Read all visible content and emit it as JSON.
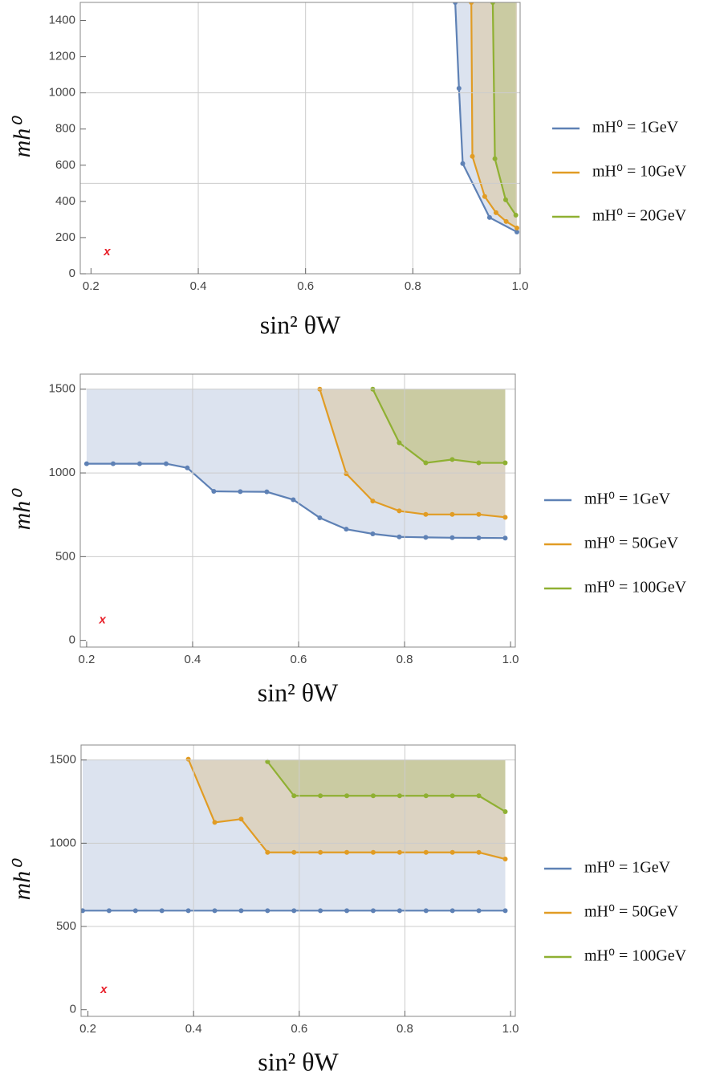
{
  "chart_data": [
    {
      "type": "line",
      "xlabel": "sin² θW",
      "ylabel": "mh⁰",
      "xlim": [
        0.18,
        1.0
      ],
      "ylim": [
        0,
        1500
      ],
      "xticks": [
        0.2,
        0.4,
        0.6,
        0.8,
        {
          "value": 1.0,
          "label": "1.0"
        }
      ],
      "yticks": [
        0,
        200,
        400,
        600,
        800,
        1000,
        1200,
        1400
      ],
      "xgrid": [
        0.4,
        0.6,
        0.8
      ],
      "ygrid": [
        500,
        1000
      ],
      "series": [
        {
          "name": "mH⁰ = 1GeV",
          "color": "#5e81b5",
          "x": [
            0.879,
            0.886,
            0.893,
            0.943,
            0.994
          ],
          "values": [
            1500,
            1025,
            609,
            311,
            231
          ]
        },
        {
          "name": "mH⁰ = 10GeV",
          "color": "#e19c24",
          "x": [
            0.909,
            0.911,
            0.934,
            0.955,
            0.974,
            0.994
          ],
          "values": [
            1500,
            649,
            427,
            338,
            289,
            253
          ]
        },
        {
          "name": "mH⁰ = 20GeV",
          "color": "#8fb032",
          "x": [
            0.949,
            0.953,
            0.973,
            0.992
          ],
          "values": [
            1500,
            636,
            409,
            324
          ]
        }
      ],
      "annotations": [
        {
          "text": "x",
          "x": 0.23,
          "y": 120,
          "color": "#e8202a"
        }
      ]
    },
    {
      "type": "line",
      "xlabel": "sin² θW",
      "ylabel": "mh⁰",
      "xlim": [
        0.188,
        1.009
      ],
      "ylim": [
        -40,
        1590
      ],
      "xticks": [
        0.2,
        0.4,
        0.6,
        0.8,
        {
          "value": 1.0,
          "label": "1.0"
        }
      ],
      "yticks": [
        0,
        500,
        1000,
        1500
      ],
      "xgrid": [
        0.4,
        0.6,
        0.8
      ],
      "ygrid": [
        500,
        1000,
        1500
      ],
      "series": [
        {
          "name": "mH⁰ = 1GeV",
          "color": "#5e81b5",
          "x": [
            0.2,
            0.25,
            0.3,
            0.35,
            0.39,
            0.44,
            0.49,
            0.54,
            0.59,
            0.64,
            0.69,
            0.74,
            0.79,
            0.84,
            0.89,
            0.94,
            0.99
          ],
          "values": [
            1055,
            1055,
            1055,
            1055,
            1030,
            890,
            888,
            887,
            840,
            732,
            664,
            636,
            618,
            615,
            613,
            612,
            611
          ]
        },
        {
          "name": "mH⁰ = 50GeV",
          "color": "#e19c24",
          "x": [
            0.64,
            0.69,
            0.74,
            0.79,
            0.84,
            0.89,
            0.94,
            0.99
          ],
          "values": [
            1500,
            995,
            832,
            773,
            752,
            752,
            752,
            735
          ]
        },
        {
          "name": "mH⁰ = 100GeV",
          "color": "#8fb032",
          "x": [
            0.74,
            0.79,
            0.84,
            0.89,
            0.94,
            0.99
          ],
          "values": [
            1500,
            1180,
            1060,
            1080,
            1060,
            1060
          ]
        }
      ],
      "annotations": [
        {
          "text": "x",
          "x": 0.23,
          "y": 120,
          "color": "#e8202a"
        }
      ]
    },
    {
      "type": "line",
      "xlabel": "sin² θW",
      "ylabel": "mh⁰",
      "xlim": [
        0.187,
        1.009
      ],
      "ylim": [
        -40,
        1590
      ],
      "xticks": [
        0.2,
        0.4,
        0.6,
        0.8,
        {
          "value": 1.0,
          "label": "1.0"
        }
      ],
      "yticks": [
        0,
        500,
        1000,
        1500
      ],
      "xgrid": [
        0.4,
        0.6,
        0.8
      ],
      "ygrid": [
        500,
        1000,
        1500
      ],
      "series": [
        {
          "name": "mH⁰ = 1GeV",
          "color": "#5e81b5",
          "x": [
            0.19,
            0.24,
            0.29,
            0.34,
            0.39,
            0.44,
            0.49,
            0.54,
            0.59,
            0.64,
            0.69,
            0.74,
            0.79,
            0.84,
            0.89,
            0.94,
            0.99
          ],
          "values": [
            595,
            595,
            595,
            595,
            595,
            595,
            595,
            595,
            595,
            595,
            595,
            595,
            595,
            595,
            595,
            595,
            595
          ]
        },
        {
          "name": "mH⁰ = 50GeV",
          "color": "#e19c24",
          "x": [
            0.39,
            0.44,
            0.49,
            0.54,
            0.59,
            0.64,
            0.69,
            0.74,
            0.79,
            0.84,
            0.89,
            0.94,
            0.99
          ],
          "values": [
            1505,
            1125,
            1145,
            945,
            945,
            945,
            945,
            945,
            945,
            945,
            945,
            945,
            905
          ]
        },
        {
          "name": "mH⁰ = 100GeV",
          "color": "#8fb032",
          "x": [
            0.54,
            0.59,
            0.64,
            0.69,
            0.74,
            0.79,
            0.84,
            0.89,
            0.94,
            0.99
          ],
          "values": [
            1490,
            1285,
            1285,
            1285,
            1285,
            1285,
            1285,
            1285,
            1285,
            1190
          ]
        }
      ],
      "annotations": [
        {
          "text": "x",
          "x": 0.23,
          "y": 120,
          "color": "#e8202a"
        }
      ]
    }
  ]
}
